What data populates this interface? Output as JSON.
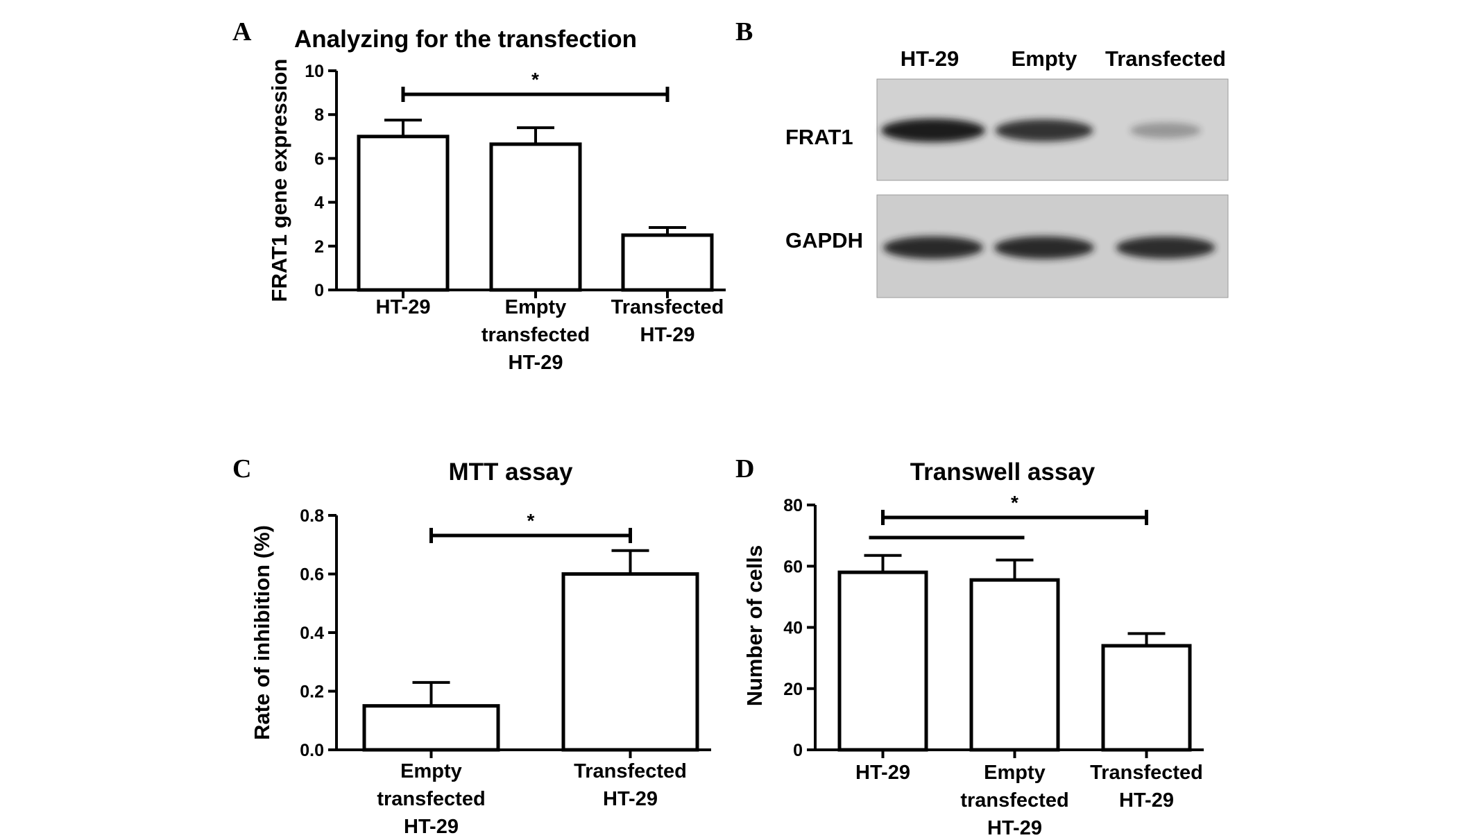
{
  "figure": {
    "panel_letters": [
      "A",
      "B",
      "C",
      "D"
    ]
  },
  "colors": {
    "bar_fill": "#ffffff",
    "stroke": "#000000",
    "blot_bg": "#cfcfcf",
    "band": "#1c1c1c"
  },
  "chart_data": [
    {
      "id": "A",
      "type": "bar",
      "title": "Analyzing for the transfection",
      "ylabel": "FRAT1 gene expression",
      "xlabel": "",
      "categories": [
        [
          "HT-29"
        ],
        [
          "Empty",
          "transfected",
          "HT-29"
        ],
        [
          "Transfected",
          "HT-29"
        ]
      ],
      "values": [
        7.0,
        6.65,
        2.5
      ],
      "errors": [
        0.75,
        0.75,
        0.35
      ],
      "ylim": [
        0,
        10
      ],
      "yticks": [
        "0",
        "2",
        "4",
        "6",
        "8",
        "10"
      ],
      "significance": [
        {
          "from": 0,
          "to": 2,
          "label": "*"
        }
      ],
      "grid": false
    },
    {
      "id": "C",
      "type": "bar",
      "title": "MTT assay",
      "ylabel": "Rate of inhibition (%)",
      "xlabel": "",
      "categories": [
        [
          "Empty",
          "transfected",
          "HT-29"
        ],
        [
          "Transfected",
          "HT-29"
        ]
      ],
      "values": [
        0.15,
        0.6
      ],
      "errors": [
        0.08,
        0.08
      ],
      "ylim": [
        0,
        0.8
      ],
      "yticks": [
        "0.0",
        "0.2",
        "0.4",
        "0.6",
        "0.8"
      ],
      "significance": [
        {
          "from": 0,
          "to": 1,
          "label": "*"
        }
      ],
      "grid": false
    },
    {
      "id": "D",
      "type": "bar",
      "title": "Transwell assay",
      "ylabel": "Number of cells",
      "xlabel": "",
      "categories": [
        [
          "HT-29"
        ],
        [
          "Empty",
          "transfected",
          "HT-29"
        ],
        [
          "Transfected",
          "HT-29"
        ]
      ],
      "values": [
        58,
        55.5,
        34
      ],
      "errors": [
        5.5,
        6.5,
        4
      ],
      "ylim": [
        0,
        80
      ],
      "yticks": [
        "0",
        "20",
        "40",
        "60",
        "80"
      ],
      "significance": [
        {
          "from": 0,
          "to": 2,
          "label": "*"
        }
      ],
      "grid": false
    }
  ],
  "western_blot": {
    "id": "B",
    "lanes": [
      "HT-29",
      "Empty",
      "Transfected"
    ],
    "rows": [
      {
        "label": "FRAT1",
        "intensity": [
          1.0,
          0.85,
          0.2
        ]
      },
      {
        "label": "GAPDH",
        "intensity": [
          0.9,
          0.9,
          0.88
        ]
      }
    ]
  }
}
